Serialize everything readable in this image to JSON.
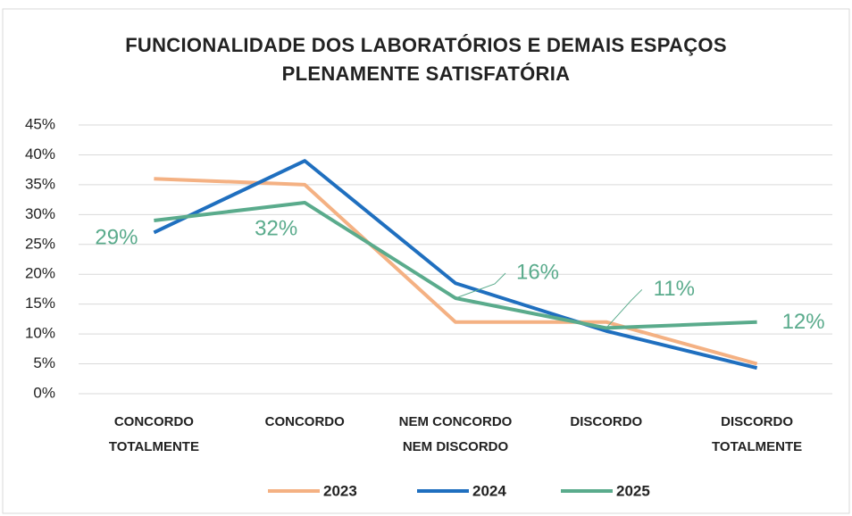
{
  "chart_data": {
    "type": "line",
    "title": "FUNCIONALIDADE DOS LABORATÓRIOS E DEMAIS ESPAÇOS\nPLENAMENTE SATISFATÓRIA",
    "categories": [
      "CONCORDO\nTOTALMENTE",
      "CONCORDO",
      "NEM CONCORDO\nNEM DISCORDO",
      "DISCORDO",
      "DISCORDO\nTOTALMENTE"
    ],
    "series": [
      {
        "name": "2023",
        "color": "#f4b183",
        "values": [
          36,
          35,
          12,
          12,
          5
        ]
      },
      {
        "name": "2024",
        "color": "#1f6fbf",
        "values": [
          27,
          39,
          18.5,
          10.5,
          4.3
        ]
      },
      {
        "name": "2025",
        "color": "#5aab8c",
        "values": [
          29,
          32,
          16,
          11,
          12
        ],
        "value_labels": [
          "29%",
          "32%",
          "16%",
          "11%",
          "12%"
        ]
      }
    ],
    "ylim": [
      0,
      45
    ],
    "yticks": [
      {
        "value": 0,
        "label": "0%"
      },
      {
        "value": 5,
        "label": "5%"
      },
      {
        "value": 10,
        "label": "10%"
      },
      {
        "value": 15,
        "label": "15%"
      },
      {
        "value": 20,
        "label": "20%"
      },
      {
        "value": 25,
        "label": "25%"
      },
      {
        "value": 30,
        "label": "30%"
      },
      {
        "value": 35,
        "label": "35%"
      },
      {
        "value": 40,
        "label": "40%"
      },
      {
        "value": 45,
        "label": "45%"
      }
    ],
    "grid": true
  }
}
